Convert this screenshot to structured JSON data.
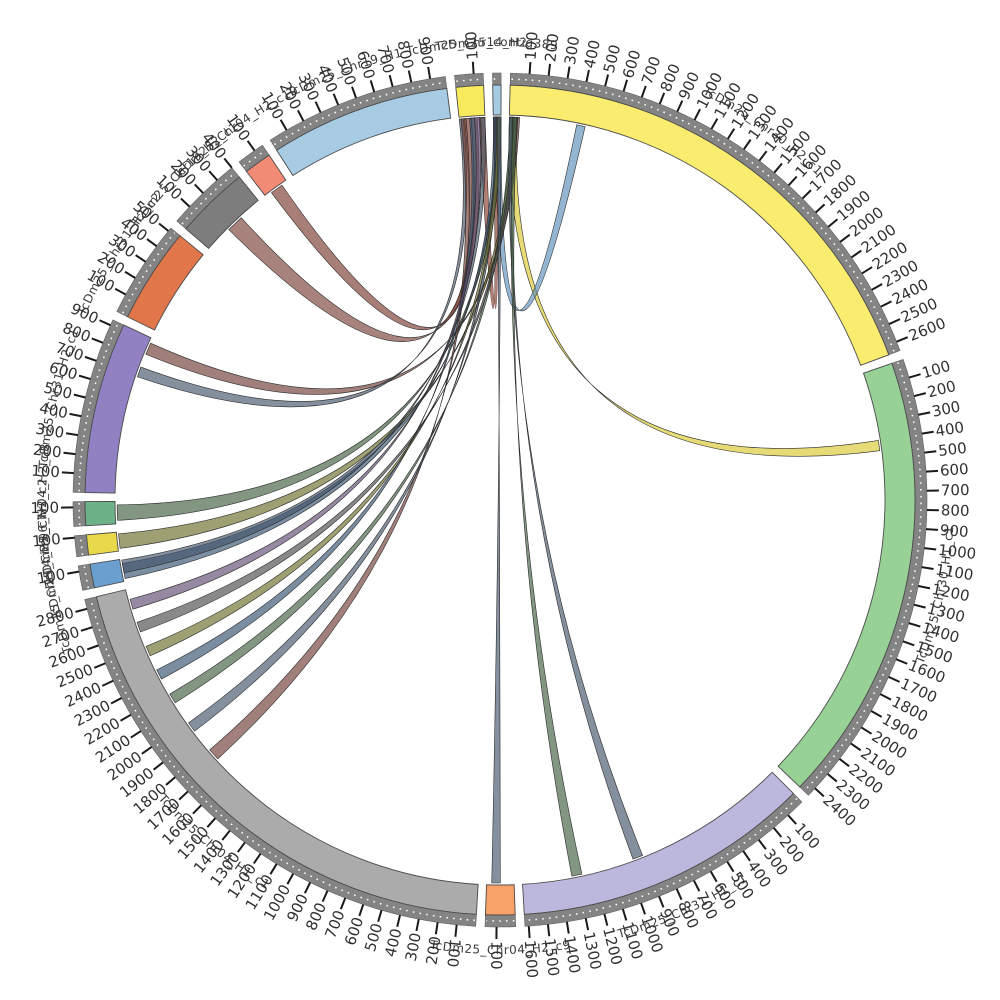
{
  "chart_data": {
    "type": "circos-chord",
    "title": "",
    "tick_interval": 100,
    "gap_degrees": 1.25,
    "start_angle_degrees": 1.4,
    "scale_band_color": "#848484",
    "tick_color": "#1a1a1a",
    "segments": [
      {
        "name": "TcDm25_Chr30_H2_c1",
        "length": 2650,
        "color": "#F9EC6E"
      },
      {
        "name": "TcDm25_Chr30_H1_c1",
        "length": 2450,
        "color": "#97D195"
      },
      {
        "name": "TcDm25_Chr31_H1_c1",
        "length": 1620,
        "color": "#BCB7DC"
      },
      {
        "name": "TcDm25_Chr04_H2_c9",
        "length": 160,
        "color": "#F8A169"
      },
      {
        "name": "TcDm25_Chr04_H1_c1",
        "length": 2850,
        "color": "#ABABAB"
      },
      {
        "name": "TcDm25_Chr04_H2_c7",
        "length": 130,
        "color": "#6B9FD0"
      },
      {
        "name": "TcDm25_Chr06_H2_c2",
        "length": 110,
        "color": "#E8D94A"
      },
      {
        "name": "TcDm25_Chr04_H2_c8",
        "length": 130,
        "color": "#6CB187"
      },
      {
        "name": "TcDm25_Chr31_H2_c1",
        "length": 930,
        "color": "#9181C2"
      },
      {
        "name": "TcDm25_Chr31_H2_c2",
        "length": 520,
        "color": "#E2764B"
      },
      {
        "name": "TcDm25_Chr19_H2_c1",
        "length": 400,
        "color": "#7D7D7D"
      },
      {
        "name": "TcDm25_Chr04_H2_c10",
        "length": 150,
        "color": "#F28B76"
      },
      {
        "name": "TcDm25_Chr19_H1",
        "length": 980,
        "color": "#A6CBE3"
      },
      {
        "name": "TcDm25_Chr14_H2",
        "length": 150,
        "color": "#F7EA5C"
      },
      {
        "name": "TcDm25_contig389",
        "length": 45,
        "color": "#A6CBE3"
      }
    ],
    "links": [
      {
        "source": "TcDm25_Chr30_H2_c1",
        "s0": 0,
        "s1": 45,
        "target": "TcDm25_Chr30_H1_c1",
        "t0": 400,
        "t1": 460,
        "color": "#d8c72e"
      },
      {
        "source": "TcDm25_contig389",
        "s0": 5,
        "s1": 45,
        "target": "TcDm25_Chr30_H2_c1",
        "t0": 395,
        "t1": 445,
        "color": "#5b8db8"
      },
      {
        "source": "TcDm25_Chr14_H2",
        "s0": 115,
        "s1": 150,
        "target": "TcDm25_contig389",
        "t0": 0,
        "t1": 25,
        "color": "#8b3a2a"
      },
      {
        "source": "TcDm25_Chr14_H2",
        "s0": 30,
        "s1": 70,
        "target": "TcDm25_Chr04_H2_c10",
        "t0": 40,
        "t1": 115,
        "color": "#7a3b2e"
      },
      {
        "source": "TcDm25_Chr14_H2",
        "s0": 70,
        "s1": 105,
        "target": "TcDm25_Chr19_H2_c1",
        "t0": 160,
        "t1": 260,
        "color": "#7a4038"
      },
      {
        "source": "TcDm25_Chr30_H2_c1",
        "s0": 45,
        "s1": 60,
        "target": "TcDm25_Chr31_H2_c1",
        "t0": 830,
        "t1": 900,
        "color": "#6e3b32"
      },
      {
        "source": "TcDm25_Chr14_H2",
        "s0": 0,
        "s1": 25,
        "target": "TcDm25_Chr31_H2_c1",
        "t0": 690,
        "t1": 750,
        "color": "#44546a"
      },
      {
        "source": "TcDm25_contig389",
        "s0": 15,
        "s1": 40,
        "target": "TcDm25_Chr04_H2_c8",
        "t0": 20,
        "t1": 110,
        "color": "#3f5e3f"
      },
      {
        "source": "TcDm25_Chr30_H2_c1",
        "s0": 15,
        "s1": 40,
        "target": "TcDm25_Chr06_H2_c2",
        "t0": 15,
        "t1": 100,
        "color": "#6b6b2a"
      },
      {
        "source": "TcDm25_contig389",
        "s0": 0,
        "s1": 20,
        "target": "TcDm25_Chr04_H2_c7",
        "t0": 15,
        "t1": 105,
        "color": "#33506e"
      },
      {
        "source": "TcDm25_Chr14_H2",
        "s0": 125,
        "s1": 150,
        "target": "TcDm25_Chr04_H2_c7",
        "t0": 50,
        "t1": 125,
        "color": "#44546a"
      },
      {
        "source": "TcDm25_Chr14_H2",
        "s0": 10,
        "s1": 40,
        "target": "TcDm25_Chr04_H1_c1",
        "t0": 1720,
        "t1": 1790,
        "color": "#6e3b32"
      },
      {
        "source": "TcDm25_contig389",
        "s0": 10,
        "s1": 35,
        "target": "TcDm25_Chr04_H1_c1",
        "t0": 1930,
        "t1": 1990,
        "color": "#44546a"
      },
      {
        "source": "TcDm25_Chr30_H2_c1",
        "s0": 5,
        "s1": 30,
        "target": "TcDm25_Chr04_H1_c1",
        "t0": 2130,
        "t1": 2190,
        "color": "#3f5e3f"
      },
      {
        "source": "TcDm25_Chr14_H2",
        "s0": 60,
        "s1": 90,
        "target": "TcDm25_Chr04_H1_c1",
        "t0": 2290,
        "t1": 2350,
        "color": "#33506e"
      },
      {
        "source": "TcDm25_contig389",
        "s0": 20,
        "s1": 45,
        "target": "TcDm25_Chr04_H1_c1",
        "t0": 2440,
        "t1": 2500,
        "color": "#6b6b2a"
      },
      {
        "source": "TcDm25_Chr30_H2_c1",
        "s0": 25,
        "s1": 50,
        "target": "TcDm25_Chr04_H1_c1",
        "t0": 2590,
        "t1": 2650,
        "color": "#4a4a4a"
      },
      {
        "source": "TcDm25_Chr14_H2",
        "s0": 90,
        "s1": 120,
        "target": "TcDm25_Chr04_H1_c1",
        "t0": 2730,
        "t1": 2790,
        "color": "#5d4a6e"
      },
      {
        "source": "TcDm25_contig389",
        "s0": 25,
        "s1": 45,
        "target": "TcDm25_Chr04_H2_c9",
        "t0": 80,
        "t1": 130,
        "color": "#44546a"
      },
      {
        "source": "TcDm25_Chr30_H2_c1",
        "s0": 0,
        "s1": 20,
        "target": "TcDm25_Chr31_H1_c1",
        "t0": 900,
        "t1": 960,
        "color": "#44546a"
      },
      {
        "source": "TcDm25_Chr30_H2_c1",
        "s0": 20,
        "s1": 45,
        "target": "TcDm25_Chr31_H1_c1",
        "t0": 1270,
        "t1": 1330,
        "color": "#3f5e3f"
      }
    ]
  }
}
